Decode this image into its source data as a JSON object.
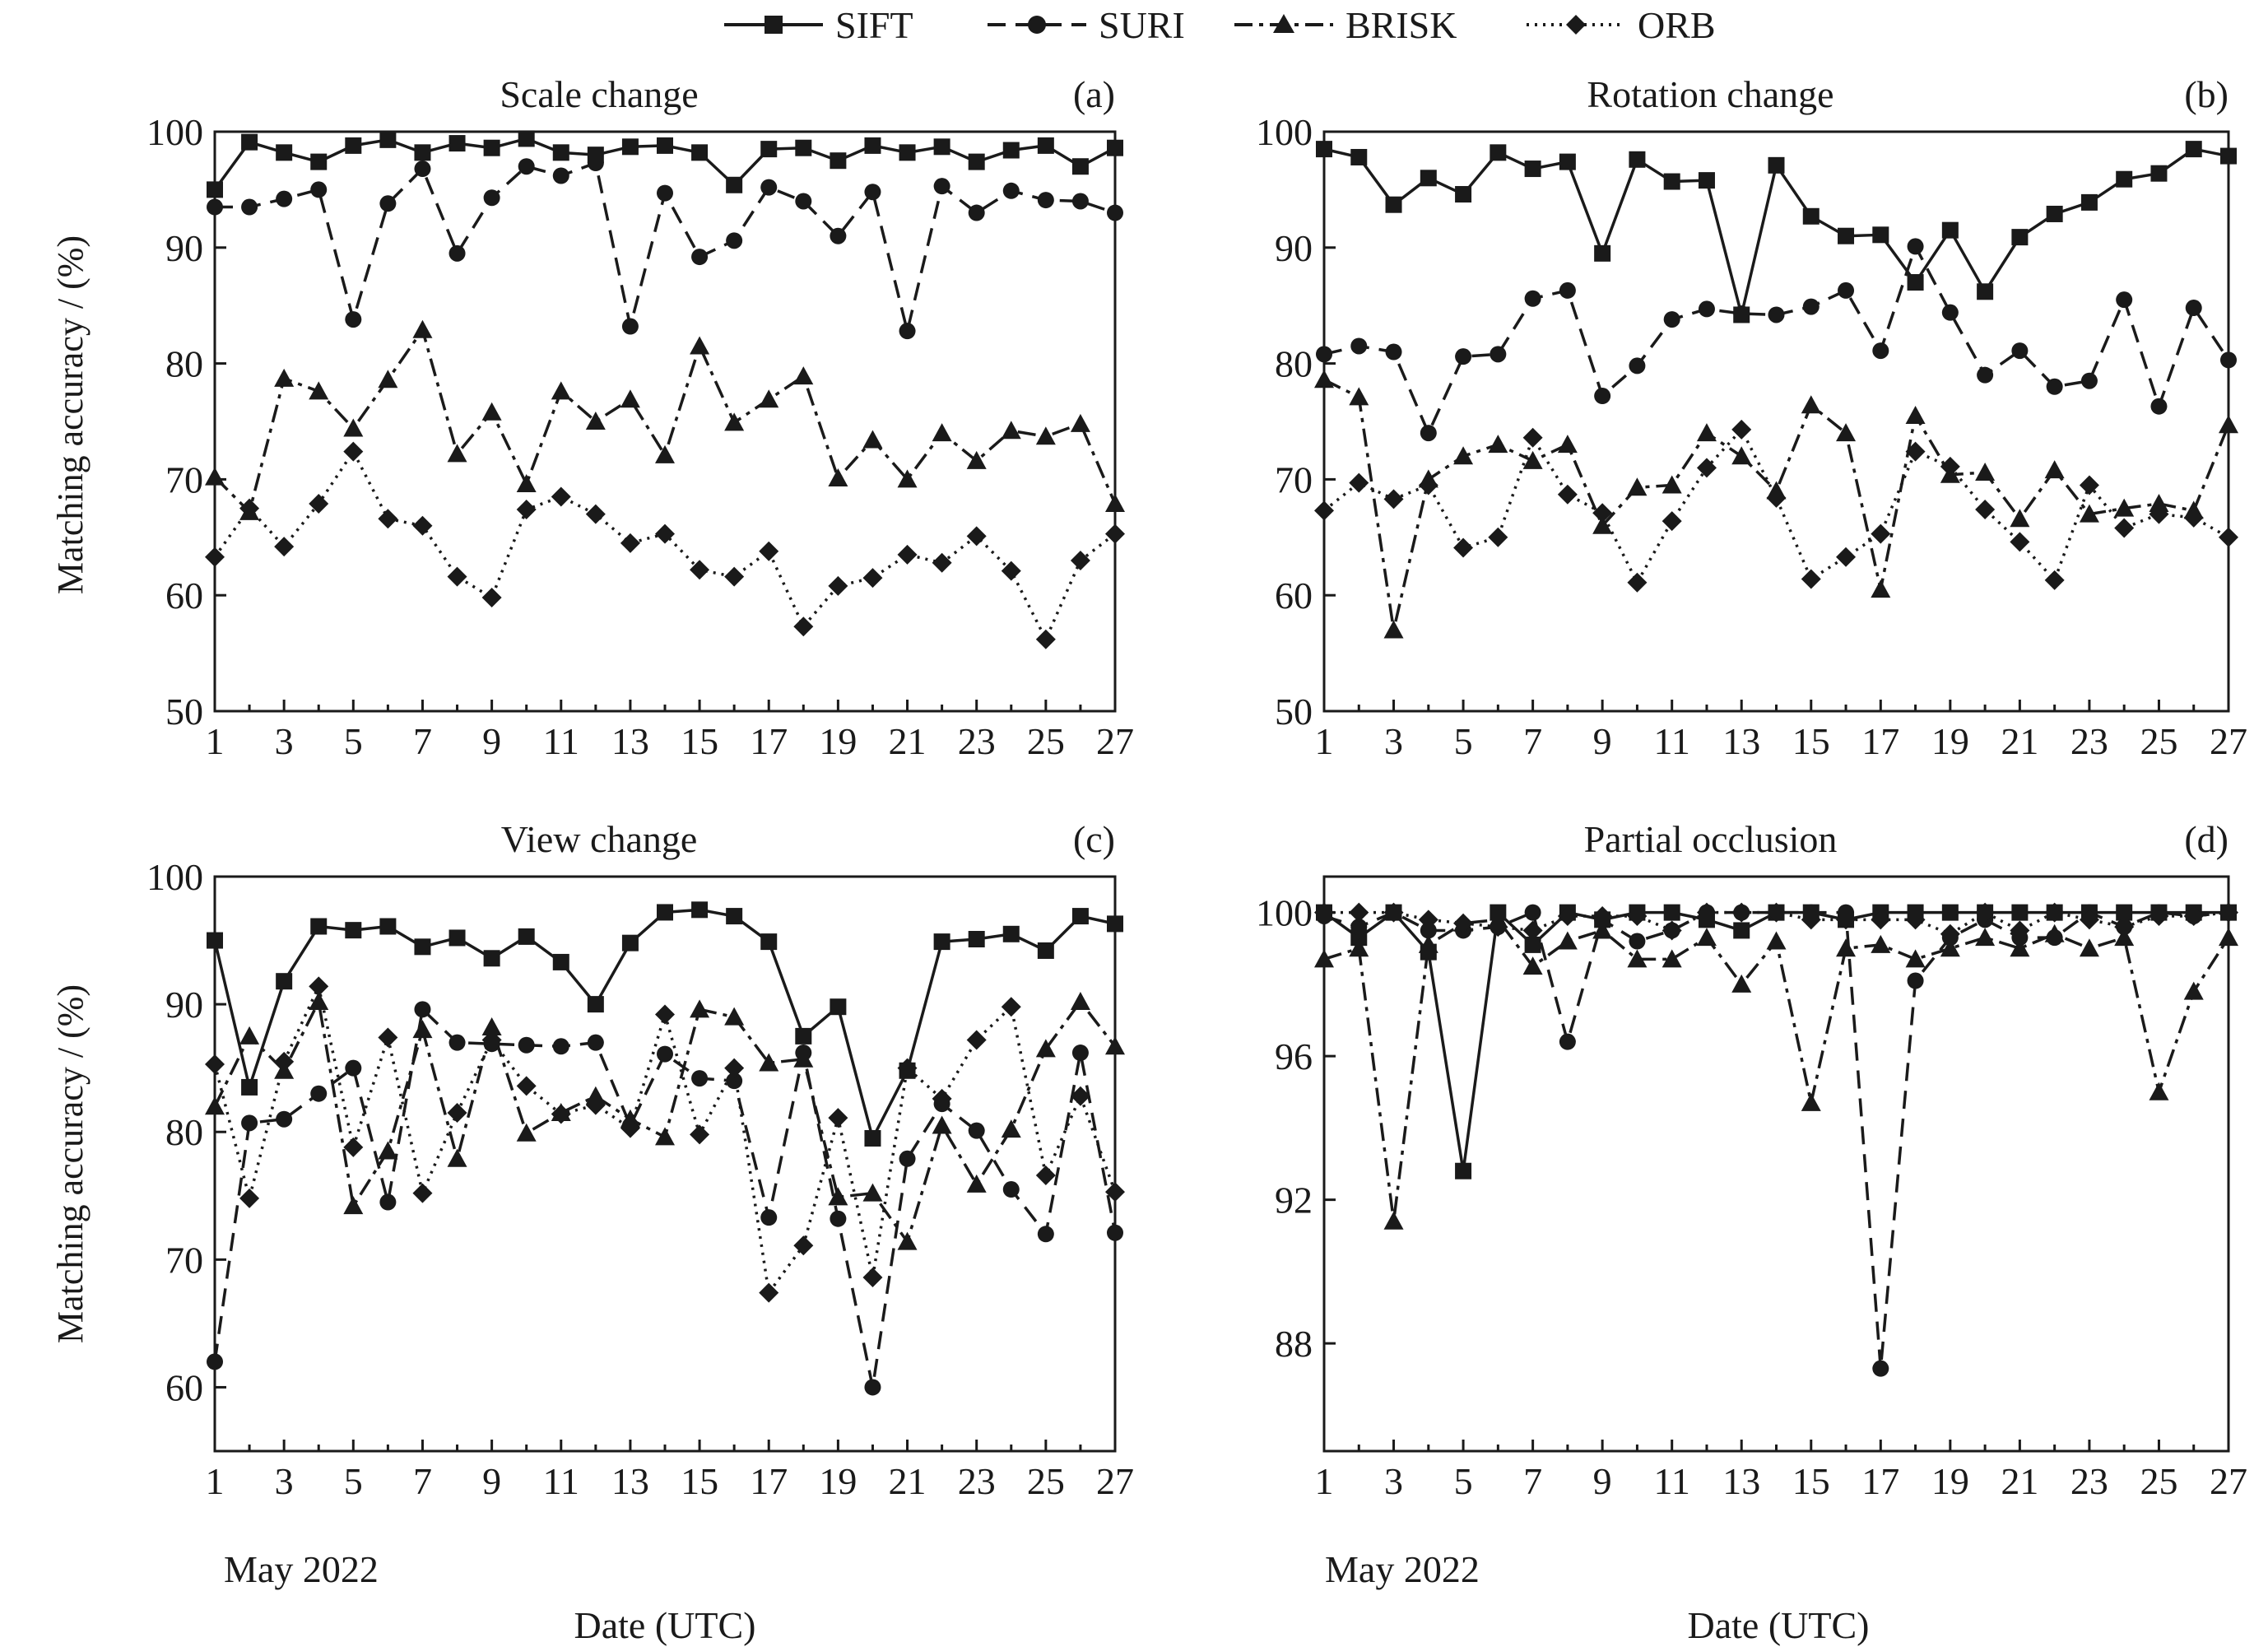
{
  "figure": {
    "legend": [
      {
        "name": "SIFT",
        "style": "solid",
        "marker": "square"
      },
      {
        "name": "SURI",
        "style": "dashed",
        "marker": "circle"
      },
      {
        "name": "BRISK",
        "style": "dashdot",
        "marker": "triangle"
      },
      {
        "name": "ORB",
        "style": "dotted",
        "marker": "diamond"
      }
    ],
    "ylabel": "Matching accuracy / (%)",
    "xlabel": "Date (UTC)",
    "month_label": "May 2022",
    "colors": {
      "line": "#1a1a1a",
      "background": "#ffffff"
    }
  },
  "chart_data": [
    {
      "type": "line",
      "panel_label": "(a)",
      "title": "Scale change",
      "x": [
        1,
        2,
        3,
        4,
        5,
        6,
        7,
        8,
        9,
        10,
        11,
        12,
        13,
        14,
        15,
        16,
        17,
        18,
        19,
        20,
        21,
        22,
        23,
        24,
        25,
        26,
        27
      ],
      "xticks": [
        1,
        3,
        5,
        7,
        9,
        11,
        13,
        15,
        17,
        19,
        21,
        23,
        25,
        27
      ],
      "ylim": [
        50,
        100
      ],
      "yticks": [
        50,
        60,
        70,
        80,
        90,
        100
      ],
      "series": [
        {
          "name": "SIFT",
          "values": [
            95.0,
            99.1,
            98.2,
            97.4,
            98.8,
            99.3,
            98.2,
            99.0,
            98.6,
            99.4,
            98.2,
            98.0,
            98.7,
            98.8,
            98.2,
            95.4,
            98.5,
            98.6,
            97.5,
            98.8,
            98.2,
            98.7,
            97.4,
            98.4,
            98.8,
            97.0,
            98.6
          ]
        },
        {
          "name": "SURI",
          "values": [
            93.5,
            93.5,
            94.2,
            95.0,
            83.8,
            93.8,
            96.8,
            89.5,
            94.3,
            97.0,
            96.2,
            97.3,
            83.2,
            94.7,
            89.2,
            90.6,
            95.2,
            94.0,
            91.0,
            94.8,
            82.8,
            95.3,
            93.0,
            94.9,
            94.1,
            94.0,
            93.0
          ]
        },
        {
          "name": "BRISK",
          "values": [
            70.2,
            67.2,
            78.7,
            77.6,
            74.4,
            78.6,
            82.9,
            72.2,
            75.8,
            69.6,
            77.6,
            75.0,
            76.9,
            72.1,
            81.5,
            74.9,
            76.9,
            78.9,
            70.1,
            73.4,
            70.0,
            74.0,
            71.6,
            74.2,
            73.7,
            74.8,
            67.9
          ]
        },
        {
          "name": "ORB",
          "values": [
            63.3,
            67.5,
            64.2,
            67.9,
            72.4,
            66.6,
            66.0,
            61.6,
            59.8,
            67.4,
            68.5,
            67.0,
            64.5,
            65.3,
            62.2,
            61.6,
            63.8,
            57.3,
            60.8,
            61.5,
            63.5,
            62.8,
            65.1,
            62.1,
            56.2,
            63.0,
            65.3
          ]
        }
      ]
    },
    {
      "type": "line",
      "panel_label": "(b)",
      "title": "Rotation change",
      "x": [
        1,
        2,
        3,
        4,
        5,
        6,
        7,
        8,
        9,
        10,
        11,
        12,
        13,
        14,
        15,
        16,
        17,
        18,
        19,
        20,
        21,
        22,
        23,
        24,
        25,
        26,
        27
      ],
      "xticks": [
        1,
        3,
        5,
        7,
        9,
        11,
        13,
        15,
        17,
        19,
        21,
        23,
        25,
        27
      ],
      "ylim": [
        50,
        100
      ],
      "yticks": [
        50,
        60,
        70,
        80,
        90,
        100
      ],
      "series": [
        {
          "name": "SIFT",
          "values": [
            98.5,
            97.8,
            93.7,
            96.0,
            94.6,
            98.2,
            96.8,
            97.4,
            89.5,
            97.6,
            95.7,
            95.8,
            84.2,
            97.1,
            92.7,
            91.0,
            91.1,
            87.0,
            91.5,
            86.2,
            90.9,
            92.9,
            93.9,
            95.9,
            96.4,
            98.5,
            97.9
          ]
        },
        {
          "name": "SURI",
          "values": [
            80.8,
            81.5,
            81.0,
            74.0,
            80.6,
            80.8,
            85.6,
            86.3,
            77.2,
            79.8,
            83.8,
            84.7,
            84.3,
            84.2,
            84.9,
            86.3,
            81.1,
            90.1,
            84.4,
            79.0,
            81.1,
            78.0,
            78.5,
            85.5,
            76.3,
            84.8,
            80.3
          ]
        },
        {
          "name": "BRISK",
          "values": [
            78.6,
            77.1,
            57.0,
            70.0,
            72.0,
            73.0,
            71.6,
            73.0,
            66.0,
            69.3,
            69.5,
            74.0,
            72.0,
            69.0,
            76.4,
            74.0,
            60.5,
            75.5,
            70.4,
            70.6,
            66.6,
            70.8,
            67.0,
            67.5,
            67.9,
            67.3,
            74.7
          ]
        },
        {
          "name": "ORB",
          "values": [
            67.3,
            69.7,
            68.3,
            69.5,
            64.1,
            65.0,
            73.6,
            68.7,
            67.1,
            61.1,
            66.4,
            71.0,
            74.3,
            68.4,
            61.4,
            63.3,
            65.3,
            72.4,
            71.1,
            67.4,
            64.6,
            61.3,
            69.5,
            65.8,
            67.0,
            66.7,
            65.0
          ]
        }
      ]
    },
    {
      "type": "line",
      "panel_label": "(c)",
      "title": "View change",
      "x": [
        1,
        2,
        3,
        4,
        5,
        6,
        7,
        8,
        9,
        10,
        11,
        12,
        13,
        14,
        15,
        16,
        17,
        18,
        19,
        20,
        21,
        22,
        23,
        24,
        25,
        26,
        27
      ],
      "xticks": [
        1,
        3,
        5,
        7,
        9,
        11,
        13,
        15,
        17,
        19,
        21,
        23,
        25,
        27
      ],
      "ylim": [
        55,
        100
      ],
      "yticks": [
        60,
        70,
        80,
        90,
        100
      ],
      "series": [
        {
          "name": "SIFT",
          "values": [
            95.0,
            83.5,
            91.8,
            96.1,
            95.8,
            96.1,
            94.5,
            95.2,
            93.6,
            95.3,
            93.3,
            90.0,
            94.8,
            97.2,
            97.4,
            96.9,
            94.9,
            87.5,
            89.8,
            79.5,
            84.8,
            94.9,
            95.1,
            95.5,
            94.2,
            96.9,
            96.3
          ]
        },
        {
          "name": "SURI",
          "values": [
            62.0,
            80.7,
            81.0,
            83.0,
            85.0,
            74.5,
            89.6,
            87.0,
            86.9,
            86.8,
            86.7,
            87.0,
            80.5,
            86.1,
            84.2,
            84.0,
            73.3,
            86.2,
            73.2,
            60.0,
            77.9,
            82.2,
            80.1,
            75.5,
            72.0,
            86.2,
            72.1
          ]
        },
        {
          "name": "BRISK",
          "values": [
            82.0,
            87.5,
            84.8,
            90.2,
            74.2,
            78.5,
            88.0,
            77.9,
            88.2,
            79.9,
            81.5,
            82.8,
            81.0,
            79.6,
            89.6,
            89.0,
            85.4,
            85.7,
            74.9,
            75.2,
            71.4,
            80.5,
            75.9,
            80.2,
            86.5,
            90.2,
            86.7
          ]
        },
        {
          "name": "ORB",
          "values": [
            85.3,
            74.8,
            85.5,
            91.4,
            78.8,
            87.4,
            75.2,
            81.5,
            87.2,
            83.6,
            81.4,
            82.1,
            80.3,
            89.2,
            79.8,
            85.0,
            67.4,
            71.1,
            81.1,
            68.6,
            85.0,
            82.6,
            87.2,
            89.8,
            76.6,
            82.8,
            75.3
          ]
        }
      ]
    },
    {
      "type": "line",
      "panel_label": "(d)",
      "title": "Partial occlusion",
      "x": [
        1,
        2,
        3,
        4,
        5,
        6,
        7,
        8,
        9,
        10,
        11,
        12,
        13,
        14,
        15,
        16,
        17,
        18,
        19,
        20,
        21,
        22,
        23,
        24,
        25,
        26,
        27
      ],
      "xticks": [
        1,
        3,
        5,
        7,
        9,
        11,
        13,
        15,
        17,
        19,
        21,
        23,
        25,
        27
      ],
      "ylim": [
        85,
        101
      ],
      "yticks": [
        88,
        92,
        96,
        100
      ],
      "series": [
        {
          "name": "SIFT",
          "values": [
            100.0,
            99.3,
            100.0,
            98.9,
            92.8,
            100.0,
            99.1,
            100.0,
            99.8,
            100.0,
            100.0,
            99.8,
            99.5,
            100.0,
            100.0,
            99.8,
            100.0,
            100.0,
            100.0,
            100.0,
            100.0,
            100.0,
            100.0,
            100.0,
            100.0,
            100.0,
            100.0
          ]
        },
        {
          "name": "SURI",
          "values": [
            99.9,
            99.6,
            100.0,
            99.5,
            99.5,
            99.6,
            100.0,
            96.4,
            99.8,
            99.2,
            99.5,
            100.0,
            100.0,
            100.0,
            100.0,
            100.0,
            87.3,
            98.1,
            99.3,
            99.8,
            99.3,
            99.3,
            100.0,
            99.6,
            100.0,
            99.9,
            100.0
          ]
        },
        {
          "name": "BRISK",
          "values": [
            98.7,
            99.0,
            91.4,
            99.1,
            99.7,
            99.8,
            98.5,
            99.2,
            99.5,
            98.7,
            98.7,
            99.3,
            98.0,
            99.2,
            94.7,
            99.0,
            99.1,
            98.7,
            99.0,
            99.3,
            99.0,
            99.4,
            99.0,
            99.3,
            95.0,
            97.8,
            99.3
          ]
        },
        {
          "name": "ORB",
          "values": [
            100.0,
            100.0,
            100.0,
            99.8,
            99.7,
            99.6,
            99.5,
            99.9,
            99.9,
            99.9,
            99.5,
            100.0,
            100.0,
            100.0,
            99.8,
            99.8,
            99.8,
            99.8,
            99.4,
            100.0,
            99.5,
            100.0,
            99.8,
            99.6,
            99.9,
            99.9,
            100.0
          ]
        }
      ]
    }
  ]
}
